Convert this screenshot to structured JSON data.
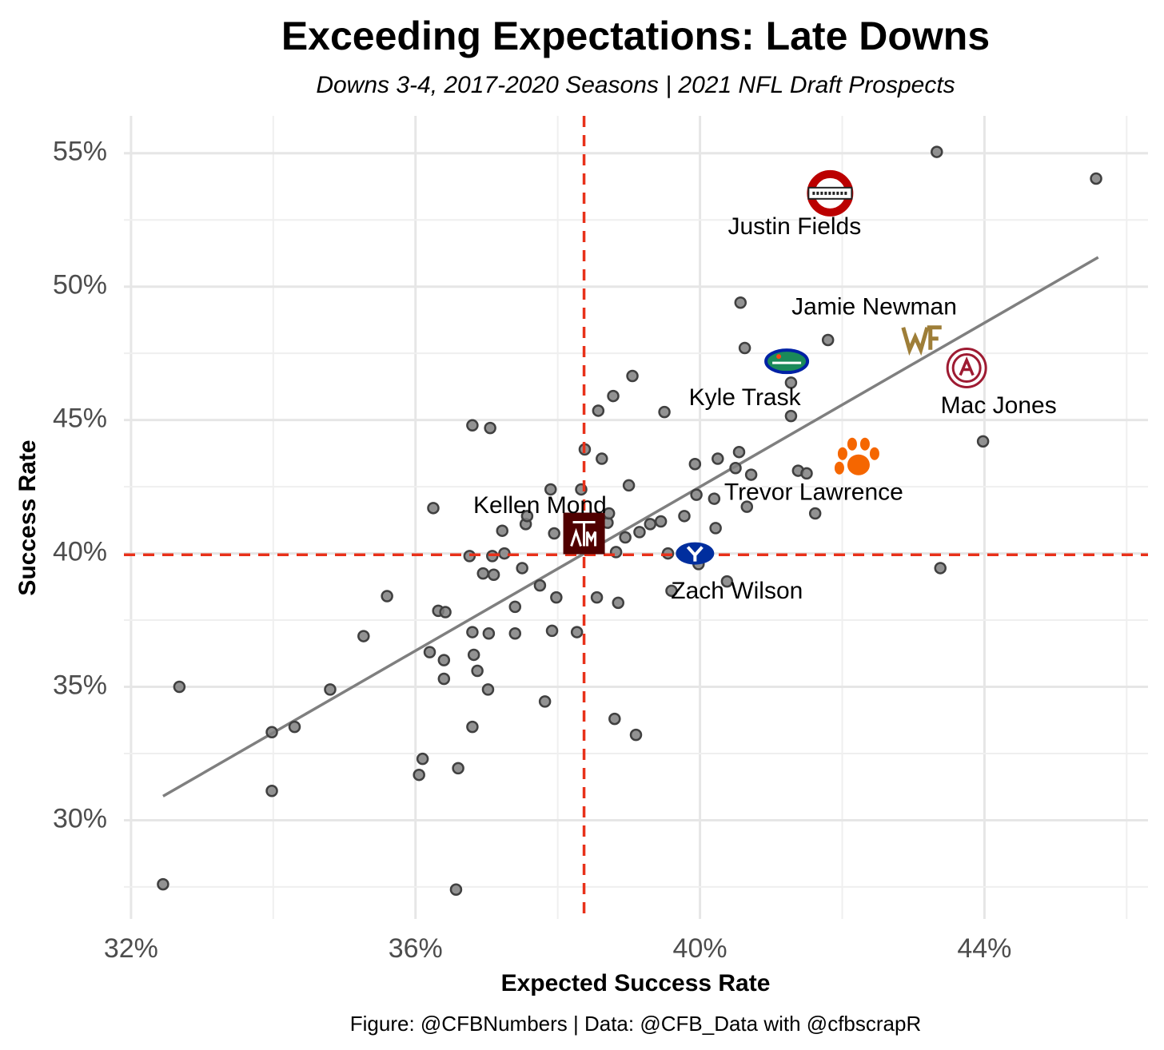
{
  "chart_data": {
    "type": "scatter",
    "title": "Exceeding Expectations: Late Downs",
    "subtitle": "Downs 3-4, 2017-2020 Seasons | 2021 NFL Draft Prospects",
    "xlabel": "Expected Success Rate",
    "ylabel": "Success Rate",
    "caption": "Figure: @CFBNumbers | Data: @CFB_Data with @cfbscrapR",
    "xlim": [
      31.9,
      46.3
    ],
    "ylim": [
      26.3,
      56.4
    ],
    "x_ticks": [
      {
        "value": 32,
        "label": "32%"
      },
      {
        "value": 36,
        "label": "36%"
      },
      {
        "value": 40,
        "label": "40%"
      },
      {
        "value": 44,
        "label": "44%"
      }
    ],
    "y_ticks": [
      {
        "value": 30,
        "label": "30%"
      },
      {
        "value": 35,
        "label": "35%"
      },
      {
        "value": 40,
        "label": "40%"
      },
      {
        "value": 45,
        "label": "45%"
      },
      {
        "value": 50,
        "label": "50%"
      },
      {
        "value": 55,
        "label": "55%"
      }
    ],
    "grid": true,
    "reference_lines": {
      "x": 38.37,
      "y": 39.95,
      "color": "#e8311a",
      "style": "dashed"
    },
    "trend_line": {
      "x": [
        32.45,
        45.6
      ],
      "y": [
        30.9,
        51.1
      ],
      "color": "#7f7f7f"
    },
    "points": [
      [
        32.45,
        27.6
      ],
      [
        32.68,
        35.0
      ],
      [
        33.98,
        33.3
      ],
      [
        33.98,
        31.1
      ],
      [
        34.3,
        33.5
      ],
      [
        34.8,
        34.9
      ],
      [
        35.27,
        36.9
      ],
      [
        35.6,
        38.4
      ],
      [
        36.05,
        31.7
      ],
      [
        36.1,
        32.3
      ],
      [
        36.2,
        36.3
      ],
      [
        36.25,
        41.7
      ],
      [
        36.32,
        37.85
      ],
      [
        36.4,
        36.0
      ],
      [
        36.4,
        35.3
      ],
      [
        36.42,
        37.8
      ],
      [
        36.57,
        27.4
      ],
      [
        36.6,
        31.95
      ],
      [
        36.76,
        39.9
      ],
      [
        36.8,
        44.8
      ],
      [
        36.8,
        37.05
      ],
      [
        36.82,
        36.2
      ],
      [
        36.8,
        33.5
      ],
      [
        36.87,
        35.6
      ],
      [
        36.95,
        39.25
      ],
      [
        37.02,
        34.9
      ],
      [
        37.03,
        37.0
      ],
      [
        37.05,
        44.7
      ],
      [
        37.08,
        39.9
      ],
      [
        37.1,
        39.2
      ],
      [
        37.22,
        40.85
      ],
      [
        37.25,
        40.0
      ],
      [
        37.4,
        38.0
      ],
      [
        37.4,
        37.0
      ],
      [
        37.5,
        39.45
      ],
      [
        37.55,
        41.1
      ],
      [
        37.57,
        41.4
      ],
      [
        37.75,
        38.8
      ],
      [
        37.82,
        34.45
      ],
      [
        37.9,
        42.4
      ],
      [
        37.92,
        37.1
      ],
      [
        37.95,
        40.75
      ],
      [
        37.98,
        38.35
      ],
      [
        38.27,
        37.05
      ],
      [
        38.33,
        42.4
      ],
      [
        38.38,
        43.9
      ],
      [
        38.52,
        40.3
      ],
      [
        38.55,
        38.35
      ],
      [
        38.57,
        45.35
      ],
      [
        38.62,
        43.55
      ],
      [
        38.7,
        41.15
      ],
      [
        38.72,
        41.5
      ],
      [
        38.78,
        45.9
      ],
      [
        38.8,
        33.8
      ],
      [
        38.82,
        40.05
      ],
      [
        38.85,
        38.15
      ],
      [
        38.95,
        40.6
      ],
      [
        39.0,
        42.55
      ],
      [
        39.05,
        46.65
      ],
      [
        39.1,
        33.2
      ],
      [
        39.15,
        40.8
      ],
      [
        39.3,
        41.1
      ],
      [
        39.45,
        41.2
      ],
      [
        39.5,
        45.3
      ],
      [
        39.55,
        40.0
      ],
      [
        39.6,
        38.6
      ],
      [
        39.78,
        41.4
      ],
      [
        39.93,
        43.35
      ],
      [
        39.95,
        42.2
      ],
      [
        39.98,
        39.6
      ],
      [
        40.2,
        42.05
      ],
      [
        40.22,
        40.95
      ],
      [
        40.25,
        43.55
      ],
      [
        40.38,
        38.95
      ],
      [
        40.5,
        43.2
      ],
      [
        40.55,
        43.8
      ],
      [
        40.57,
        49.4
      ],
      [
        40.63,
        47.7
      ],
      [
        40.66,
        41.75
      ],
      [
        40.72,
        42.95
      ],
      [
        41.28,
        45.15
      ],
      [
        41.28,
        46.4
      ],
      [
        41.38,
        43.1
      ],
      [
        41.5,
        43.0
      ],
      [
        41.62,
        41.5
      ],
      [
        41.8,
        48.0
      ],
      [
        43.33,
        55.05
      ],
      [
        43.38,
        39.45
      ],
      [
        43.98,
        44.2
      ],
      [
        45.57,
        54.05
      ]
    ],
    "highlighted_players": [
      {
        "name": "Justin Fields",
        "logo": "ohio-state-logo",
        "x": 41.83,
        "y": 53.5,
        "label_x": 41.33,
        "label_y": 52.2
      },
      {
        "name": "Jamie Newman",
        "logo": "wake-forest-logo",
        "x": 43.15,
        "y": 48.05,
        "label_x": 42.45,
        "label_y": 49.2
      },
      {
        "name": "Mac Jones",
        "logo": "alabama-logo",
        "x": 43.75,
        "y": 46.95,
        "label_x": 44.2,
        "label_y": 45.5
      },
      {
        "name": "Kyle Trask",
        "logo": "florida-logo",
        "x": 41.22,
        "y": 47.2,
        "label_x": 40.63,
        "label_y": 45.8
      },
      {
        "name": "Trevor Lawrence",
        "logo": "clemson-logo",
        "x": 42.23,
        "y": 43.5,
        "label_x": 41.6,
        "label_y": 42.25
      },
      {
        "name": "Kellen Mond",
        "logo": "texas-am-logo",
        "x": 38.37,
        "y": 40.75,
        "label_x": 37.75,
        "label_y": 41.75
      },
      {
        "name": "Zach Wilson",
        "logo": "byu-logo",
        "x": 39.93,
        "y": 40.0,
        "label_x": 40.52,
        "label_y": 38.55
      }
    ],
    "colors": {
      "point_fill": "#7f7f7f",
      "point_stroke": "#404040",
      "ohio_state": "#bb0000",
      "wake_forest": "#9e7e38",
      "alabama": "#9e1b32",
      "florida_blue": "#0021a5",
      "florida_green": "#1a8a5a",
      "florida_orange": "#fa4616",
      "clemson": "#f56600",
      "texas_am": "#500000",
      "byu": "#002e9e"
    }
  }
}
